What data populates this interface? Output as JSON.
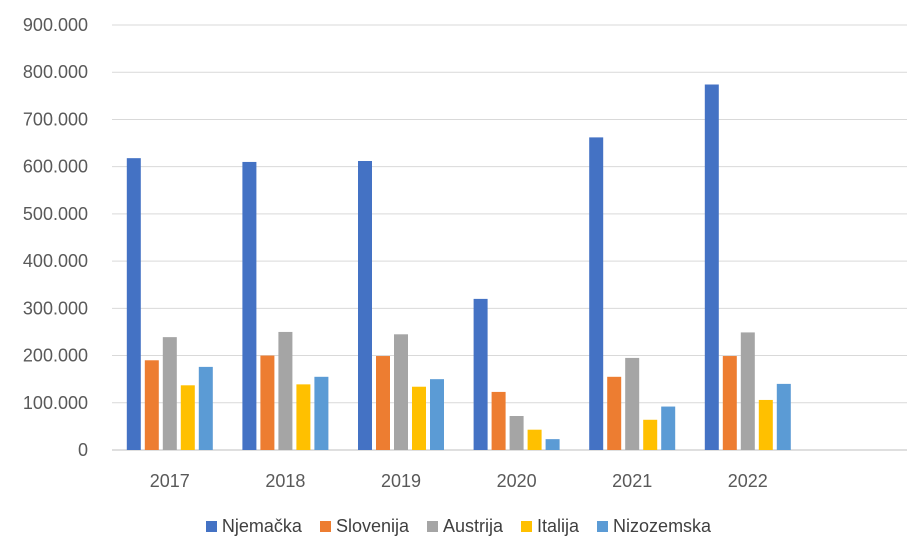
{
  "chart_data": {
    "type": "bar",
    "categories": [
      "2017",
      "2018",
      "2019",
      "2020",
      "2021",
      "2022"
    ],
    "series": [
      {
        "name": "Njemačka",
        "color": "#4472C4",
        "values": [
          618000,
          610000,
          612000,
          320000,
          662000,
          774000
        ]
      },
      {
        "name": "Slovenija",
        "color": "#ED7D31",
        "values": [
          190000,
          200000,
          199000,
          123000,
          155000,
          199000
        ]
      },
      {
        "name": "Austrija",
        "color": "#A5A5A5",
        "values": [
          239000,
          250000,
          245000,
          72000,
          195000,
          249000
        ]
      },
      {
        "name": "Italija",
        "color": "#FFC000",
        "values": [
          137000,
          139000,
          134000,
          43000,
          64000,
          106000
        ]
      },
      {
        "name": "Nizozemska",
        "color": "#5B9BD5",
        "values": [
          176000,
          155000,
          150000,
          23000,
          92000,
          140000
        ]
      }
    ],
    "y_ticks": [
      "0",
      "100.000",
      "200.000",
      "300.000",
      "400.000",
      "500.000",
      "600.000",
      "700.000",
      "800.000",
      "900.000"
    ],
    "ylim": [
      0,
      900000
    ],
    "grid": true,
    "legend_position": "bottom"
  }
}
